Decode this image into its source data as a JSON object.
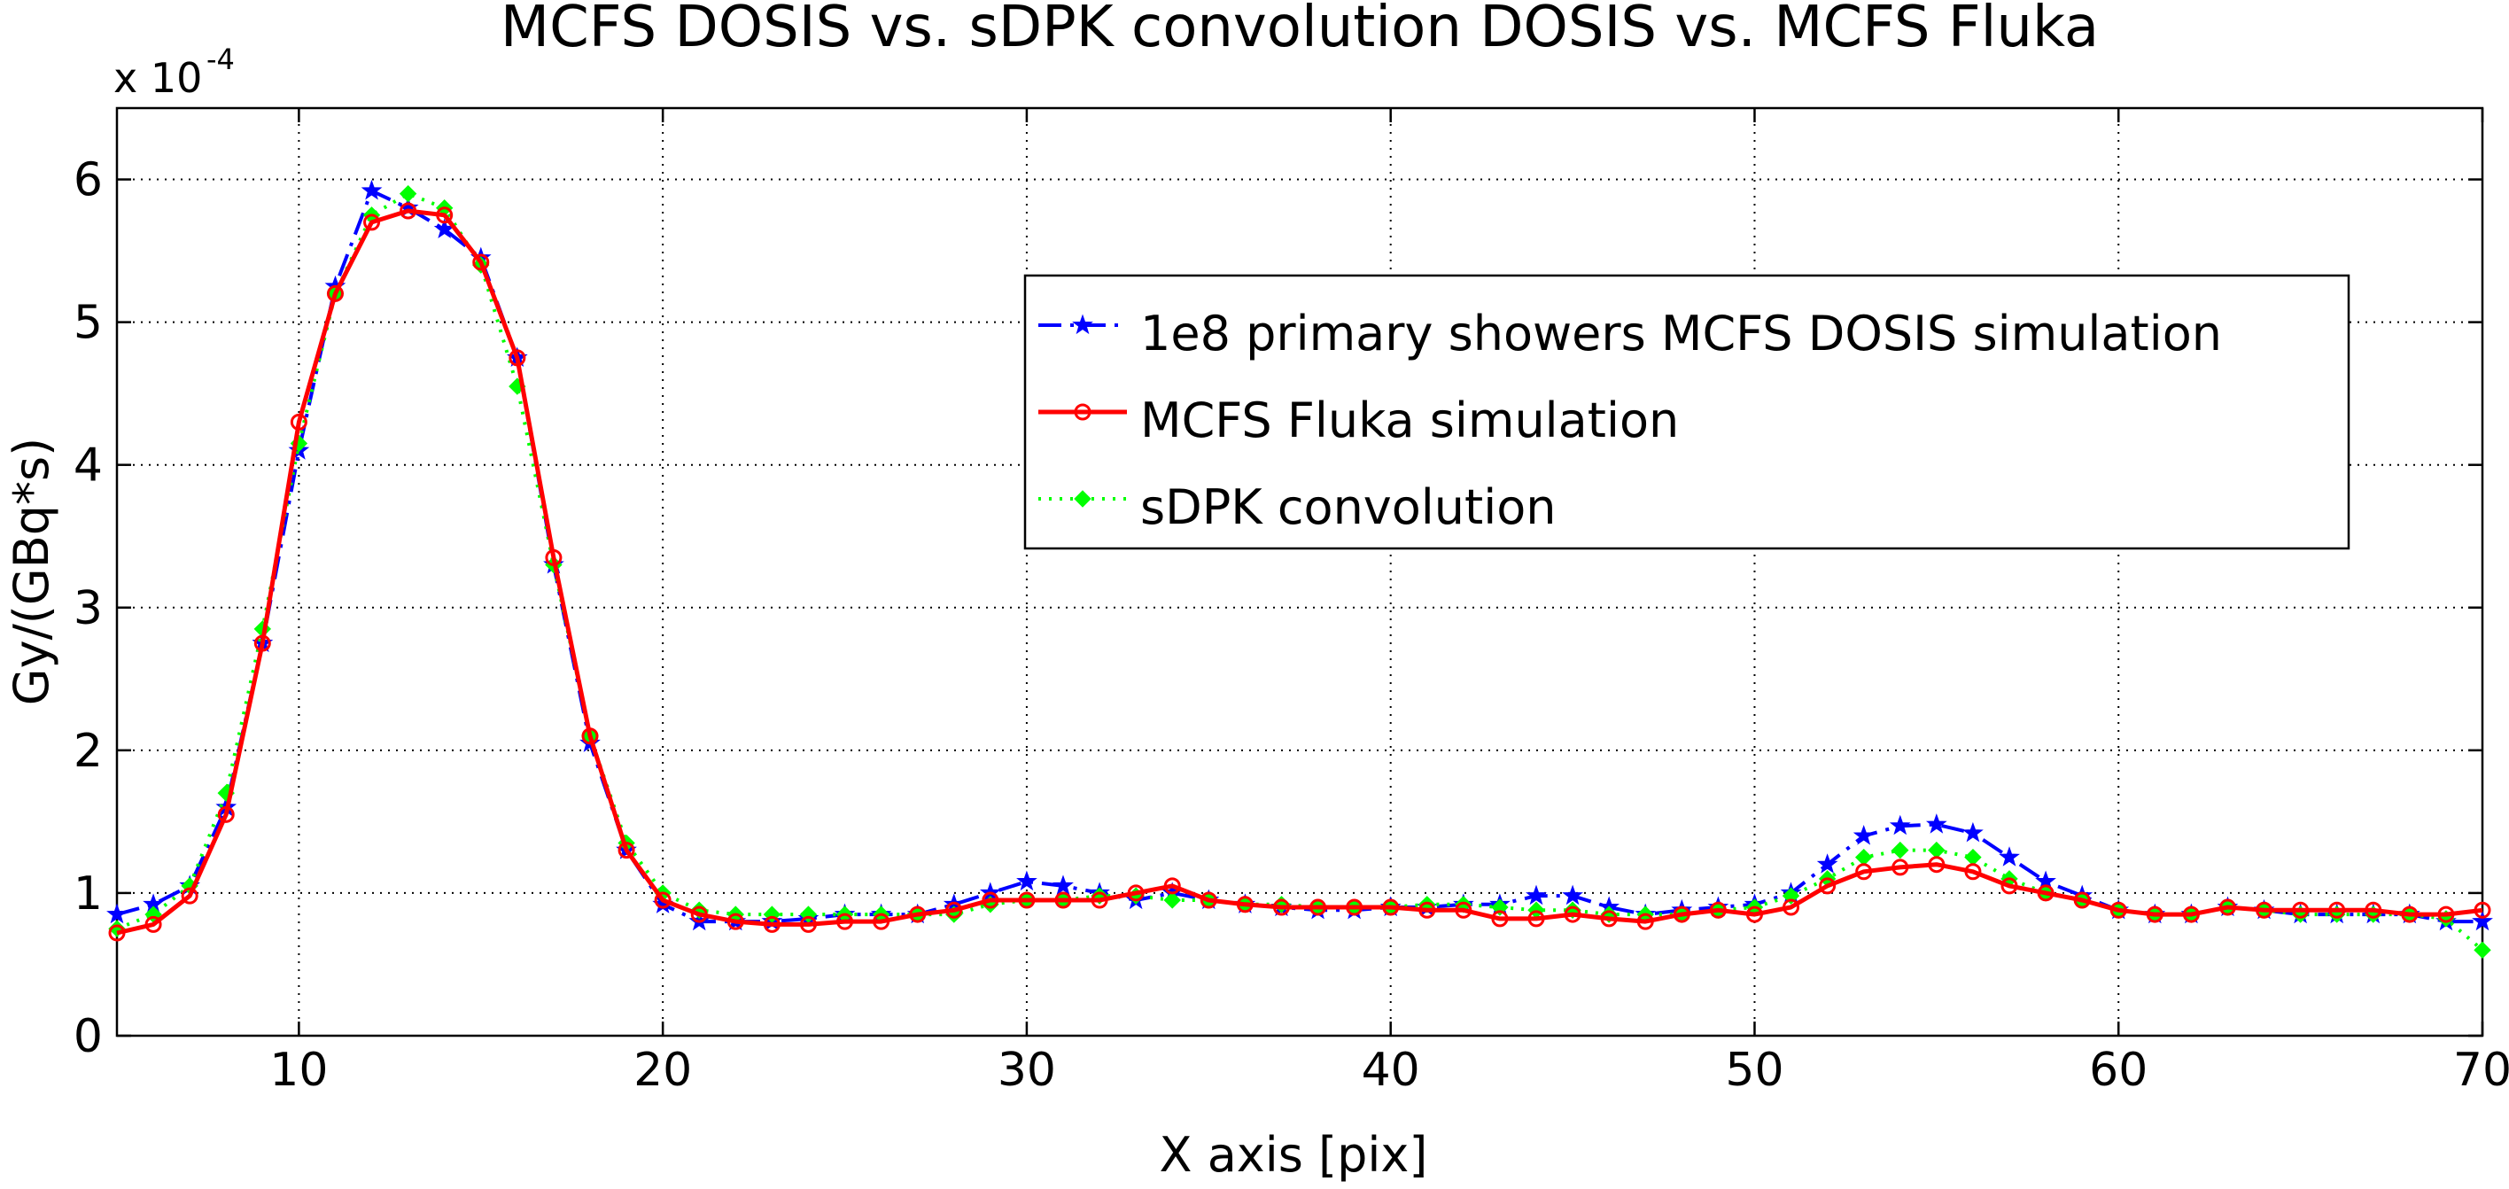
{
  "chart_data": {
    "type": "line",
    "title": "MCFS DOSIS vs. sDPK convolution DOSIS vs. MCFS Fluka",
    "xlabel": "X axis [pix]",
    "ylabel": "Gy/(GBq*s)",
    "y_exponent_base": "x 10",
    "y_exponent_power": "-4",
    "xlim": [
      5,
      70
    ],
    "ylim": [
      0,
      6.5
    ],
    "x_ticks": [
      10,
      20,
      30,
      40,
      50,
      60,
      70
    ],
    "y_ticks": [
      0,
      1,
      2,
      3,
      4,
      5,
      6
    ],
    "grid": true,
    "legend_position": "upper-right-center",
    "x": [
      5,
      6,
      7,
      8,
      9,
      10,
      11,
      12,
      13,
      14,
      15,
      16,
      17,
      18,
      19,
      20,
      21,
      22,
      23,
      24,
      25,
      26,
      27,
      28,
      29,
      30,
      31,
      32,
      33,
      34,
      35,
      36,
      37,
      38,
      39,
      40,
      41,
      42,
      43,
      44,
      45,
      46,
      47,
      48,
      49,
      50,
      51,
      52,
      53,
      54,
      55,
      56,
      57,
      58,
      59,
      60,
      61,
      62,
      63,
      64,
      65,
      66,
      67,
      68,
      69,
      70
    ],
    "series": [
      {
        "name": "1e8 primary showers MCFS DOSIS simulation",
        "color": "#0000ff",
        "line_style": "dashdot",
        "marker": "star",
        "values": [
          0.85,
          0.92,
          1.05,
          1.6,
          2.75,
          4.1,
          5.25,
          5.92,
          5.8,
          5.65,
          5.45,
          4.75,
          3.3,
          2.05,
          1.3,
          0.92,
          0.8,
          0.8,
          0.8,
          0.82,
          0.85,
          0.85,
          0.85,
          0.92,
          1.0,
          1.08,
          1.05,
          1.0,
          0.95,
          1.0,
          0.95,
          0.92,
          0.9,
          0.88,
          0.88,
          0.9,
          0.9,
          0.92,
          0.92,
          0.98,
          0.98,
          0.9,
          0.85,
          0.88,
          0.9,
          0.92,
          1.0,
          1.2,
          1.4,
          1.47,
          1.48,
          1.42,
          1.25,
          1.08,
          0.98,
          0.88,
          0.85,
          0.85,
          0.9,
          0.88,
          0.85,
          0.85,
          0.85,
          0.85,
          0.8,
          0.8
        ]
      },
      {
        "name": "MCFS Fluka simulation",
        "color": "#ff0000",
        "line_style": "solid",
        "marker": "circle",
        "values": [
          0.72,
          0.78,
          0.98,
          1.55,
          2.75,
          4.3,
          5.2,
          5.7,
          5.78,
          5.75,
          5.42,
          4.75,
          3.35,
          2.1,
          1.3,
          0.95,
          0.85,
          0.8,
          0.78,
          0.78,
          0.8,
          0.8,
          0.85,
          0.88,
          0.95,
          0.95,
          0.95,
          0.95,
          1.0,
          1.05,
          0.95,
          0.92,
          0.9,
          0.9,
          0.9,
          0.9,
          0.88,
          0.88,
          0.82,
          0.82,
          0.85,
          0.82,
          0.8,
          0.85,
          0.88,
          0.85,
          0.9,
          1.05,
          1.15,
          1.18,
          1.2,
          1.15,
          1.05,
          1.0,
          0.95,
          0.88,
          0.85,
          0.85,
          0.9,
          0.88,
          0.88,
          0.88,
          0.88,
          0.85,
          0.85,
          0.88
        ]
      },
      {
        "name": "sDPK convolution",
        "color": "#00ff00",
        "line_style": "dotted",
        "marker": "diamond",
        "values": [
          0.75,
          0.85,
          1.05,
          1.7,
          2.85,
          4.15,
          5.2,
          5.75,
          5.9,
          5.8,
          5.4,
          4.55,
          3.3,
          2.1,
          1.35,
          1.0,
          0.88,
          0.85,
          0.85,
          0.85,
          0.85,
          0.85,
          0.85,
          0.85,
          0.92,
          0.95,
          0.95,
          0.98,
          0.98,
          0.95,
          0.95,
          0.92,
          0.92,
          0.9,
          0.9,
          0.9,
          0.92,
          0.92,
          0.9,
          0.88,
          0.88,
          0.85,
          0.85,
          0.85,
          0.88,
          0.9,
          0.98,
          1.1,
          1.25,
          1.3,
          1.3,
          1.25,
          1.1,
          1.0,
          0.95,
          0.88,
          0.85,
          0.85,
          0.9,
          0.88,
          0.85,
          0.85,
          0.85,
          0.85,
          0.82,
          0.6
        ]
      }
    ]
  }
}
